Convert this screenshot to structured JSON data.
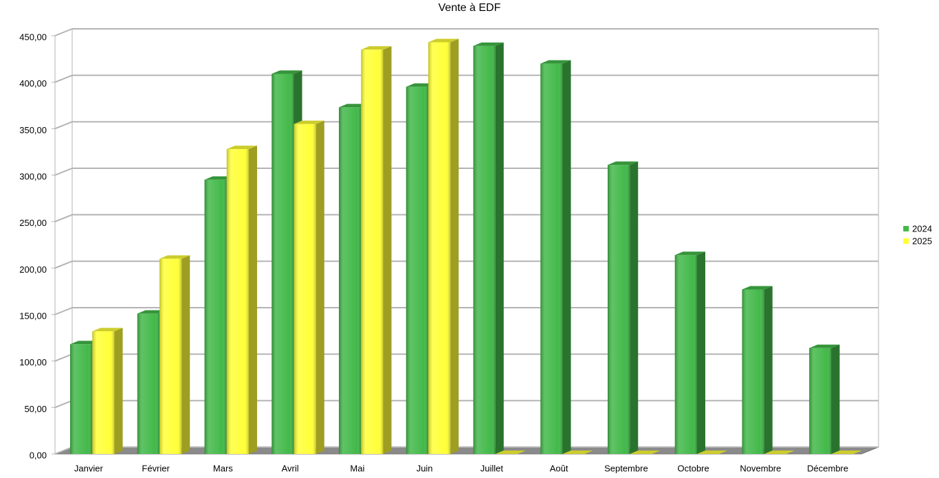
{
  "chart_data": {
    "type": "bar3d",
    "title": "Vente à EDF",
    "categories": [
      "Janvier",
      "Février",
      "Mars",
      "Avril",
      "Mai",
      "Juin",
      "Juillet",
      "Août",
      "Septembre",
      "Octobre",
      "Novembre",
      "Décembre"
    ],
    "series": [
      {
        "name": "2024",
        "color": "#43b94a",
        "values": [
          118,
          151,
          295,
          409,
          373,
          395,
          439,
          420,
          311,
          214,
          177,
          114
        ]
      },
      {
        "name": "2025",
        "color": "#ffff38",
        "values": [
          132,
          210,
          328,
          355,
          435,
          443,
          0,
          0,
          0,
          0,
          0,
          0
        ]
      }
    ],
    "ylim": [
      0,
      450
    ],
    "yticks": [
      {
        "value": 0,
        "label": "0,00"
      },
      {
        "value": 50,
        "label": "50,00"
      },
      {
        "value": 100,
        "label": "100,00"
      },
      {
        "value": 150,
        "label": "150,00"
      },
      {
        "value": 200,
        "label": "200,00"
      },
      {
        "value": 250,
        "label": "250,00"
      },
      {
        "value": 300,
        "label": "300,00"
      },
      {
        "value": 350,
        "label": "350,00"
      },
      {
        "value": 400,
        "label": "400,00"
      },
      {
        "value": 450,
        "label": "450,00"
      }
    ],
    "grid": true,
    "legend": "right"
  }
}
